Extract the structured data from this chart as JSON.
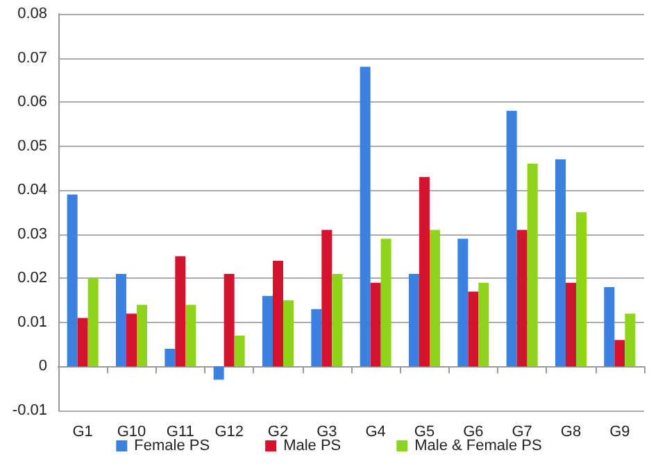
{
  "chart_data": {
    "type": "bar",
    "categories": [
      "G1",
      "G10",
      "G11",
      "G12",
      "G2",
      "G3",
      "G4",
      "G5",
      "G6",
      "G7",
      "G8",
      "G9"
    ],
    "series": [
      {
        "name": "Female PS",
        "color": "#3b82e0",
        "values": [
          0.039,
          0.021,
          0.004,
          -0.003,
          0.016,
          0.013,
          0.068,
          0.021,
          0.029,
          0.058,
          0.047,
          0.018
        ]
      },
      {
        "name": "Male PS",
        "color": "#d3142e",
        "values": [
          0.011,
          0.012,
          0.025,
          0.021,
          0.024,
          0.031,
          0.019,
          0.043,
          0.017,
          0.031,
          0.019,
          0.006
        ]
      },
      {
        "name": "Male & Female PS",
        "color": "#8fd41c",
        "values": [
          0.02,
          0.014,
          0.014,
          0.007,
          0.015,
          0.021,
          0.029,
          0.031,
          0.019,
          0.046,
          0.035,
          0.012
        ]
      }
    ],
    "ylim": [
      -0.01,
      0.08
    ],
    "yticks": [
      -0.01,
      0,
      0.01,
      0.02,
      0.03,
      0.04,
      0.05,
      0.06,
      0.07,
      0.08
    ],
    "grid": "y",
    "legend": "bottom"
  }
}
